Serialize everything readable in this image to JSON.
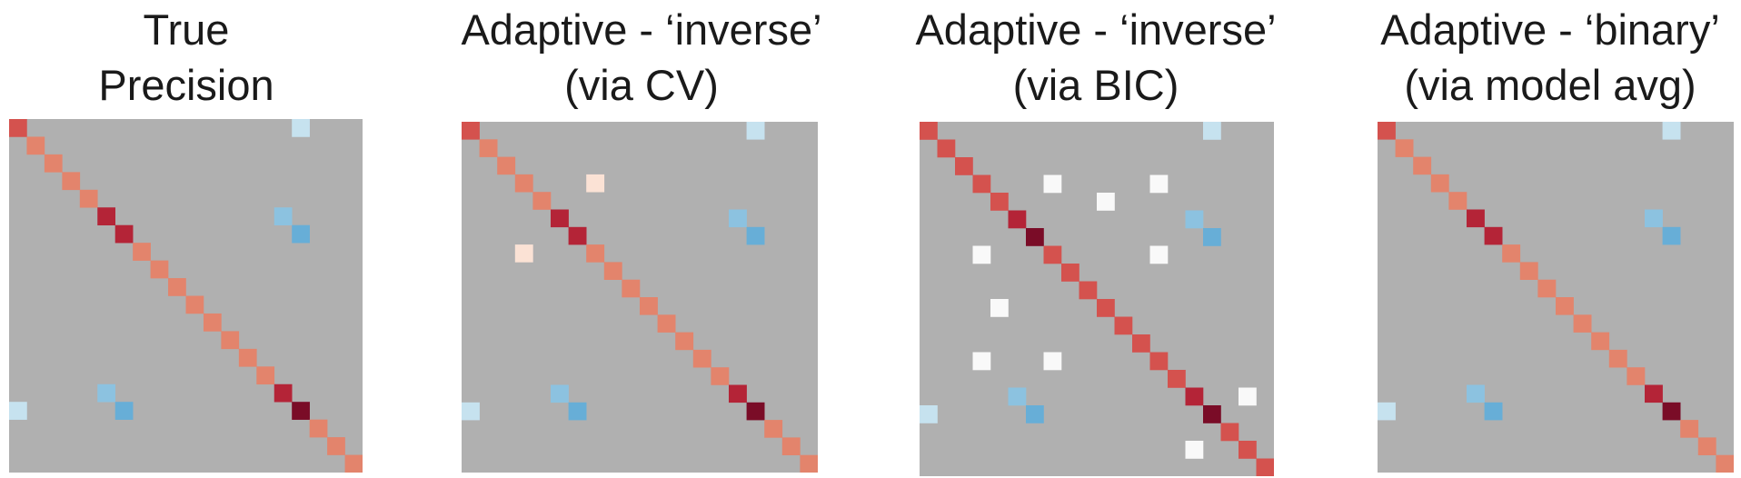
{
  "figure": {
    "background": "#ffffff",
    "matrix_size": 20
  },
  "colors": {
    "zero": "#b0b0b0",
    "diag_normal": "#e3846c",
    "diag_mid": "#d4524e",
    "diag_strong": "#b42437",
    "diag_max": "#7a0c27",
    "pos_faint": "#fbe2d5",
    "pos_white": "#f9f9f9",
    "neg_light": "#c6e2ef",
    "neg_mid": "#8cc2e0",
    "neg_strong": "#67aed7"
  },
  "chart_data": [
    {
      "type": "heatmap",
      "title_lines": [
        "True",
        "Precision"
      ],
      "n": 20,
      "diagonal": [
        "diag_mid",
        "diag_normal",
        "diag_normal",
        "diag_normal",
        "diag_normal",
        "diag_strong",
        "diag_strong",
        "diag_normal",
        "diag_normal",
        "diag_normal",
        "diag_normal",
        "diag_normal",
        "diag_normal",
        "diag_normal",
        "diag_normal",
        "diag_strong",
        "diag_max",
        "diag_normal",
        "diag_normal",
        "diag_normal"
      ],
      "offdiag": [
        {
          "row": 0,
          "col": 16,
          "color": "neg_light"
        },
        {
          "row": 16,
          "col": 0,
          "color": "neg_light"
        },
        {
          "row": 5,
          "col": 15,
          "color": "neg_mid"
        },
        {
          "row": 15,
          "col": 5,
          "color": "neg_mid"
        },
        {
          "row": 6,
          "col": 16,
          "color": "neg_strong"
        },
        {
          "row": 16,
          "col": 6,
          "color": "neg_strong"
        }
      ]
    },
    {
      "type": "heatmap",
      "title_lines": [
        "Adaptive - ‘inverse’",
        "(via CV)"
      ],
      "n": 20,
      "diagonal": [
        "diag_mid",
        "diag_normal",
        "diag_normal",
        "diag_normal",
        "diag_normal",
        "diag_strong",
        "diag_strong",
        "diag_normal",
        "diag_normal",
        "diag_normal",
        "diag_normal",
        "diag_normal",
        "diag_normal",
        "diag_normal",
        "diag_normal",
        "diag_strong",
        "diag_max",
        "diag_normal",
        "diag_normal",
        "diag_normal"
      ],
      "offdiag": [
        {
          "row": 0,
          "col": 16,
          "color": "neg_light"
        },
        {
          "row": 16,
          "col": 0,
          "color": "neg_light"
        },
        {
          "row": 5,
          "col": 15,
          "color": "neg_mid"
        },
        {
          "row": 15,
          "col": 5,
          "color": "neg_mid"
        },
        {
          "row": 6,
          "col": 16,
          "color": "neg_strong"
        },
        {
          "row": 16,
          "col": 6,
          "color": "neg_strong"
        },
        {
          "row": 3,
          "col": 7,
          "color": "pos_faint"
        },
        {
          "row": 7,
          "col": 3,
          "color": "pos_faint"
        }
      ]
    },
    {
      "type": "heatmap",
      "title_lines": [
        "Adaptive - ‘inverse’",
        "(via BIC)"
      ],
      "n": 20,
      "diagonal": [
        "diag_mid",
        "diag_mid",
        "diag_mid",
        "diag_mid",
        "diag_mid",
        "diag_strong",
        "diag_max",
        "diag_mid",
        "diag_mid",
        "diag_mid",
        "diag_mid",
        "diag_mid",
        "diag_mid",
        "diag_mid",
        "diag_mid",
        "diag_strong",
        "diag_max",
        "diag_mid",
        "diag_mid",
        "diag_mid"
      ],
      "offdiag": [
        {
          "row": 0,
          "col": 16,
          "color": "neg_light"
        },
        {
          "row": 16,
          "col": 0,
          "color": "neg_light"
        },
        {
          "row": 5,
          "col": 15,
          "color": "neg_mid"
        },
        {
          "row": 15,
          "col": 5,
          "color": "neg_mid"
        },
        {
          "row": 6,
          "col": 16,
          "color": "neg_strong"
        },
        {
          "row": 16,
          "col": 6,
          "color": "neg_strong"
        },
        {
          "row": 3,
          "col": 7,
          "color": "pos_white"
        },
        {
          "row": 3,
          "col": 13,
          "color": "pos_white"
        },
        {
          "row": 4,
          "col": 10,
          "color": "pos_white"
        },
        {
          "row": 7,
          "col": 3,
          "color": "pos_white"
        },
        {
          "row": 7,
          "col": 13,
          "color": "pos_white"
        },
        {
          "row": 10,
          "col": 4,
          "color": "pos_white"
        },
        {
          "row": 13,
          "col": 3,
          "color": "pos_white"
        },
        {
          "row": 13,
          "col": 7,
          "color": "pos_white"
        },
        {
          "row": 15,
          "col": 18,
          "color": "pos_white"
        },
        {
          "row": 18,
          "col": 15,
          "color": "pos_white"
        }
      ]
    },
    {
      "type": "heatmap",
      "title_lines": [
        "Adaptive - ‘binary’",
        "(via model avg)"
      ],
      "n": 20,
      "diagonal": [
        "diag_mid",
        "diag_normal",
        "diag_normal",
        "diag_normal",
        "diag_normal",
        "diag_strong",
        "diag_strong",
        "diag_normal",
        "diag_normal",
        "diag_normal",
        "diag_normal",
        "diag_normal",
        "diag_normal",
        "diag_normal",
        "diag_normal",
        "diag_strong",
        "diag_max",
        "diag_normal",
        "diag_normal",
        "diag_normal"
      ],
      "offdiag": [
        {
          "row": 0,
          "col": 16,
          "color": "neg_light"
        },
        {
          "row": 16,
          "col": 0,
          "color": "neg_light"
        },
        {
          "row": 5,
          "col": 15,
          "color": "neg_mid"
        },
        {
          "row": 15,
          "col": 5,
          "color": "neg_mid"
        },
        {
          "row": 6,
          "col": 16,
          "color": "neg_strong"
        },
        {
          "row": 16,
          "col": 6,
          "color": "neg_strong"
        }
      ]
    }
  ]
}
